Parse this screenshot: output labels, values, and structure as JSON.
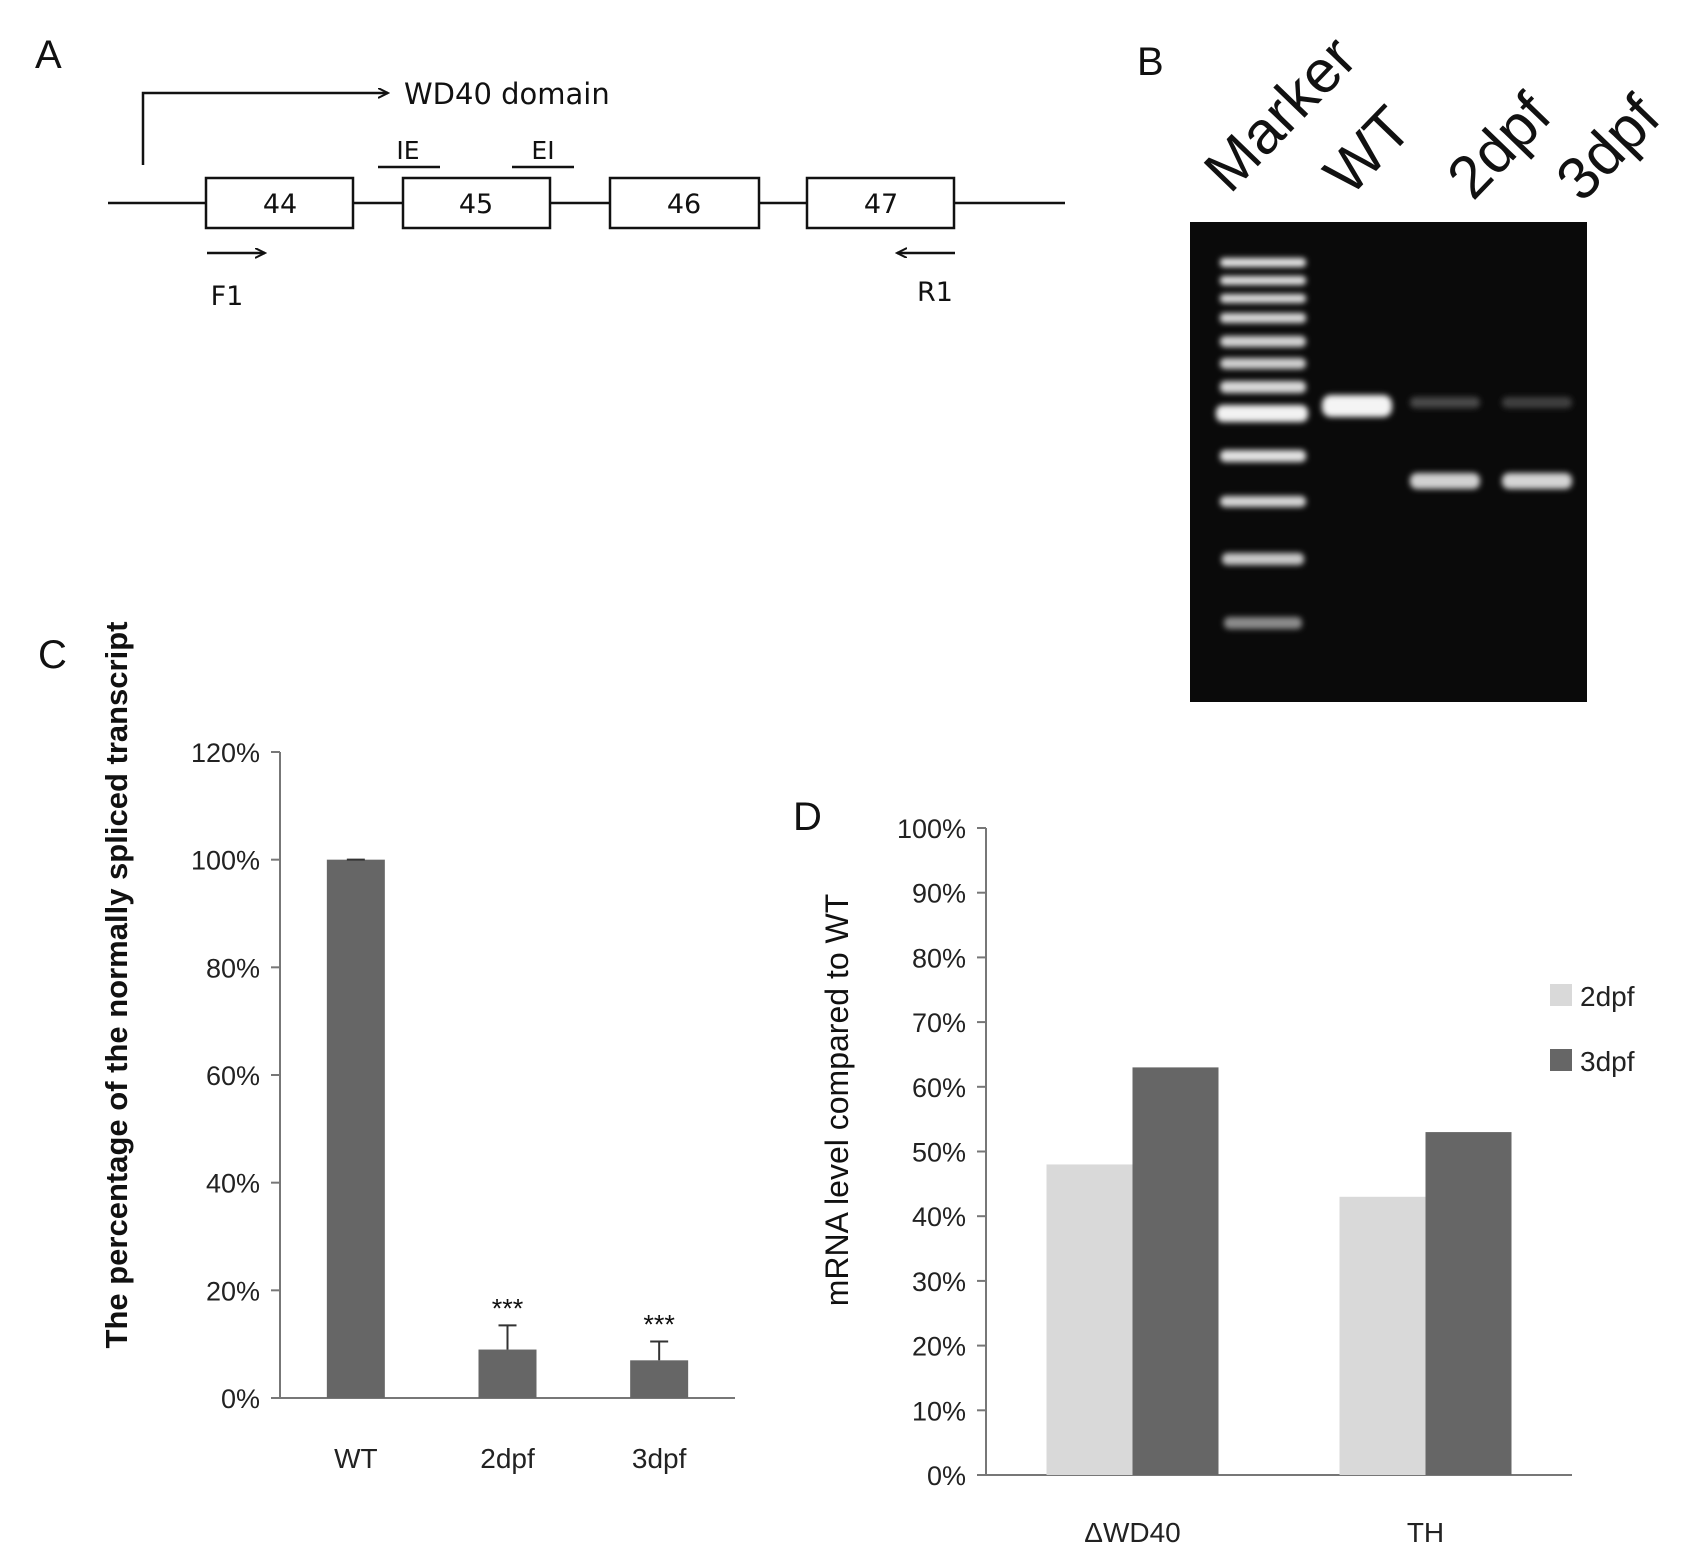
{
  "panels": {
    "a": "A",
    "b": "B",
    "c": "C",
    "d": "D"
  },
  "diagram": {
    "domain_label": "WD40 domain",
    "exons": [
      "44",
      "45",
      "46",
      "47"
    ],
    "probe_ie": "IE",
    "probe_ei": "EI",
    "primer_f": "F1",
    "primer_r": "R1"
  },
  "gel": {
    "lanes": [
      "Marker",
      "WT",
      "2dpf",
      "3dpf"
    ]
  },
  "chart_data": [
    {
      "type": "bar",
      "ylabel": "The percentage of the normally spliced transcript",
      "categories": [
        "WT",
        "2dpf",
        "3dpf"
      ],
      "values": [
        100,
        9,
        7
      ],
      "error": [
        0,
        4.5,
        3.5
      ],
      "significance": [
        "",
        "***",
        "***"
      ],
      "ylim": [
        0,
        120
      ],
      "yticks": [
        "0%",
        "20%",
        "40%",
        "60%",
        "80%",
        "100%",
        "120%"
      ],
      "bar_color": "#666666"
    },
    {
      "type": "bar",
      "ylabel": "mRNA level compared to WT",
      "categories": [
        "ΔWD40",
        "TH"
      ],
      "series": [
        {
          "name": "2dpf",
          "values": [
            48,
            43
          ],
          "color": "#d9d9d9"
        },
        {
          "name": "3dpf",
          "values": [
            63,
            53
          ],
          "color": "#666666"
        }
      ],
      "ylim": [
        0,
        100
      ],
      "yticks": [
        "0%",
        "10%",
        "20%",
        "30%",
        "40%",
        "50%",
        "60%",
        "70%",
        "80%",
        "90%",
        "100%"
      ],
      "legend": "right"
    }
  ]
}
